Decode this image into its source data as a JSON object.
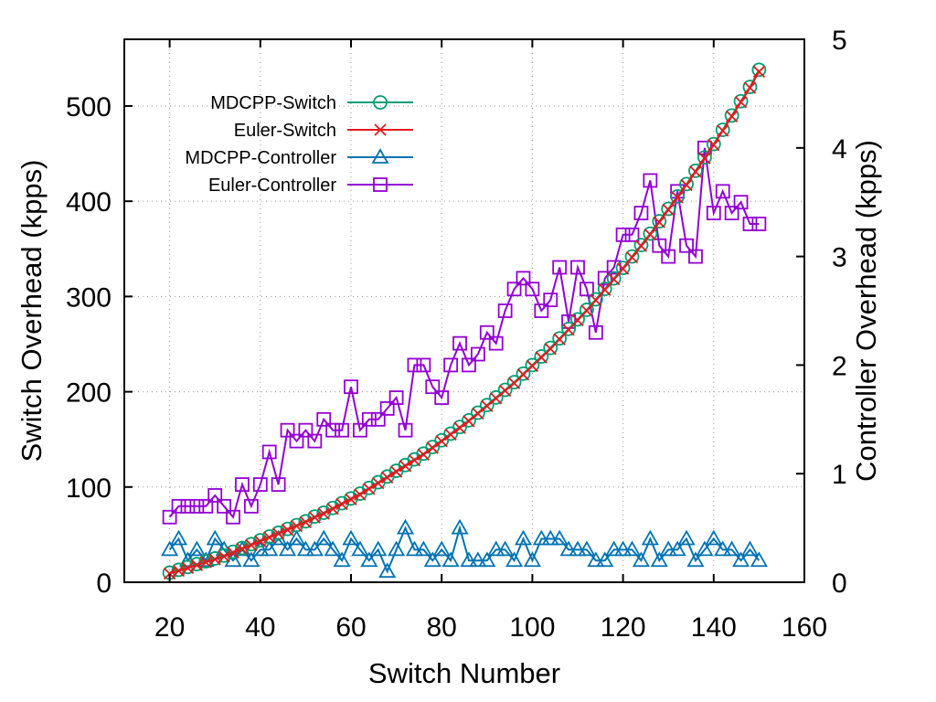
{
  "chart_data": {
    "type": "line",
    "xlabel": "Switch Number",
    "ylabel": "Switch Overhead (kpps)",
    "y2label": "Controller Overhead (kpps)",
    "xlim": [
      10,
      160
    ],
    "ylim": [
      0,
      570
    ],
    "y2lim": [
      0,
      5
    ],
    "xticks": [
      "20",
      "40",
      "60",
      "80",
      "100",
      "120",
      "140",
      "160"
    ],
    "yticks": [
      "0",
      "100",
      "200",
      "300",
      "400",
      "500"
    ],
    "y2ticks": [
      "0",
      "1",
      "2",
      "3",
      "4",
      "5"
    ],
    "grid": true,
    "legend_position": "top-left",
    "series": [
      {
        "name": "MDCPP-Switch",
        "axis": "left",
        "color": "#009e73",
        "marker": "circle",
        "x": [
          20,
          22,
          24,
          26,
          28,
          30,
          32,
          34,
          36,
          38,
          40,
          42,
          44,
          46,
          48,
          50,
          52,
          54,
          56,
          58,
          60,
          62,
          64,
          66,
          68,
          70,
          72,
          74,
          76,
          78,
          80,
          82,
          84,
          86,
          88,
          90,
          92,
          94,
          96,
          98,
          100,
          102,
          104,
          106,
          108,
          110,
          112,
          114,
          116,
          118,
          120,
          122,
          124,
          126,
          128,
          130,
          132,
          134,
          136,
          138,
          140,
          142,
          144,
          146,
          148,
          150
        ],
        "values": [
          10,
          13,
          16,
          19,
          22,
          25,
          28,
          32,
          36,
          40,
          44,
          48,
          52,
          56,
          60,
          64,
          69,
          73,
          78,
          83,
          88,
          93,
          99,
          105,
          111,
          117,
          123,
          129,
          135,
          142,
          149,
          156,
          163,
          170,
          178,
          186,
          194,
          202,
          210,
          219,
          228,
          237,
          246,
          256,
          266,
          276,
          286,
          297,
          308,
          319,
          330,
          342,
          354,
          366,
          379,
          392,
          405,
          418,
          432,
          446,
          460,
          475,
          490,
          505,
          520,
          538
        ]
      },
      {
        "name": "Euler-Switch",
        "axis": "left",
        "color": "#e41a1c",
        "marker": "cross",
        "x": [
          20,
          22,
          24,
          26,
          28,
          30,
          32,
          34,
          36,
          38,
          40,
          42,
          44,
          46,
          48,
          50,
          52,
          54,
          56,
          58,
          60,
          62,
          64,
          66,
          68,
          70,
          72,
          74,
          76,
          78,
          80,
          82,
          84,
          86,
          88,
          90,
          92,
          94,
          96,
          98,
          100,
          102,
          104,
          106,
          108,
          110,
          112,
          114,
          116,
          118,
          120,
          122,
          124,
          126,
          128,
          130,
          132,
          134,
          136,
          138,
          140,
          142,
          144,
          146,
          148,
          150
        ],
        "values": [
          9,
          12,
          15,
          18,
          21,
          24,
          27,
          31,
          35,
          39,
          43,
          47,
          51,
          55,
          59,
          63,
          68,
          72,
          77,
          82,
          87,
          92,
          98,
          104,
          110,
          116,
          122,
          128,
          134,
          141,
          148,
          155,
          162,
          169,
          177,
          185,
          193,
          201,
          209,
          218,
          227,
          236,
          245,
          255,
          265,
          275,
          285,
          296,
          307,
          318,
          329,
          341,
          353,
          365,
          378,
          391,
          404,
          417,
          431,
          445,
          459,
          474,
          489,
          504,
          519,
          536
        ]
      },
      {
        "name": "MDCPP-Controller",
        "axis": "right",
        "color": "#0072b2",
        "marker": "triangle",
        "x": [
          20,
          22,
          24,
          26,
          28,
          30,
          32,
          34,
          36,
          38,
          40,
          42,
          44,
          46,
          48,
          50,
          52,
          54,
          56,
          58,
          60,
          62,
          64,
          66,
          68,
          70,
          72,
          74,
          76,
          78,
          80,
          82,
          84,
          86,
          88,
          90,
          92,
          94,
          96,
          98,
          100,
          102,
          104,
          106,
          108,
          110,
          112,
          114,
          116,
          118,
          120,
          122,
          124,
          126,
          128,
          130,
          132,
          134,
          136,
          138,
          140,
          142,
          144,
          146,
          148,
          150
        ],
        "values": [
          0.3,
          0.4,
          0.2,
          0.3,
          0.2,
          0.4,
          0.3,
          0.2,
          0.3,
          0.2,
          0.3,
          0.3,
          0.4,
          0.3,
          0.4,
          0.3,
          0.3,
          0.4,
          0.3,
          0.2,
          0.4,
          0.3,
          0.2,
          0.3,
          0.1,
          0.3,
          0.5,
          0.3,
          0.3,
          0.2,
          0.3,
          0.2,
          0.5,
          0.2,
          0.2,
          0.2,
          0.3,
          0.3,
          0.2,
          0.4,
          0.2,
          0.4,
          0.4,
          0.4,
          0.3,
          0.3,
          0.3,
          0.2,
          0.2,
          0.3,
          0.3,
          0.3,
          0.2,
          0.4,
          0.2,
          0.3,
          0.3,
          0.4,
          0.2,
          0.3,
          0.4,
          0.3,
          0.3,
          0.2,
          0.3,
          0.2
        ]
      },
      {
        "name": "Euler-Controller",
        "axis": "right",
        "color": "#9400d3",
        "marker": "square",
        "x": [
          20,
          22,
          24,
          26,
          28,
          30,
          32,
          34,
          36,
          38,
          40,
          42,
          44,
          46,
          48,
          50,
          52,
          54,
          56,
          58,
          60,
          62,
          64,
          66,
          68,
          70,
          72,
          74,
          76,
          78,
          80,
          82,
          84,
          86,
          88,
          90,
          92,
          94,
          96,
          98,
          100,
          102,
          104,
          106,
          108,
          110,
          112,
          114,
          116,
          118,
          120,
          122,
          124,
          126,
          128,
          130,
          132,
          134,
          136,
          138,
          140,
          142,
          144,
          146,
          148,
          150
        ],
        "values": [
          0.6,
          0.7,
          0.7,
          0.7,
          0.7,
          0.8,
          0.7,
          0.6,
          0.9,
          0.7,
          0.9,
          1.2,
          0.9,
          1.4,
          1.3,
          1.4,
          1.3,
          1.5,
          1.4,
          1.4,
          1.8,
          1.4,
          1.5,
          1.5,
          1.6,
          1.7,
          1.4,
          2.0,
          2.0,
          1.8,
          1.7,
          2.0,
          2.2,
          2.0,
          2.1,
          2.3,
          2.2,
          2.5,
          2.7,
          2.8,
          2.7,
          2.5,
          2.6,
          2.9,
          2.4,
          2.9,
          2.7,
          2.3,
          2.8,
          2.9,
          3.2,
          3.2,
          3.4,
          3.7,
          3.1,
          3.0,
          3.6,
          3.1,
          3.0,
          4.0,
          3.4,
          3.6,
          3.4,
          3.5,
          3.3,
          3.3
        ]
      }
    ]
  }
}
